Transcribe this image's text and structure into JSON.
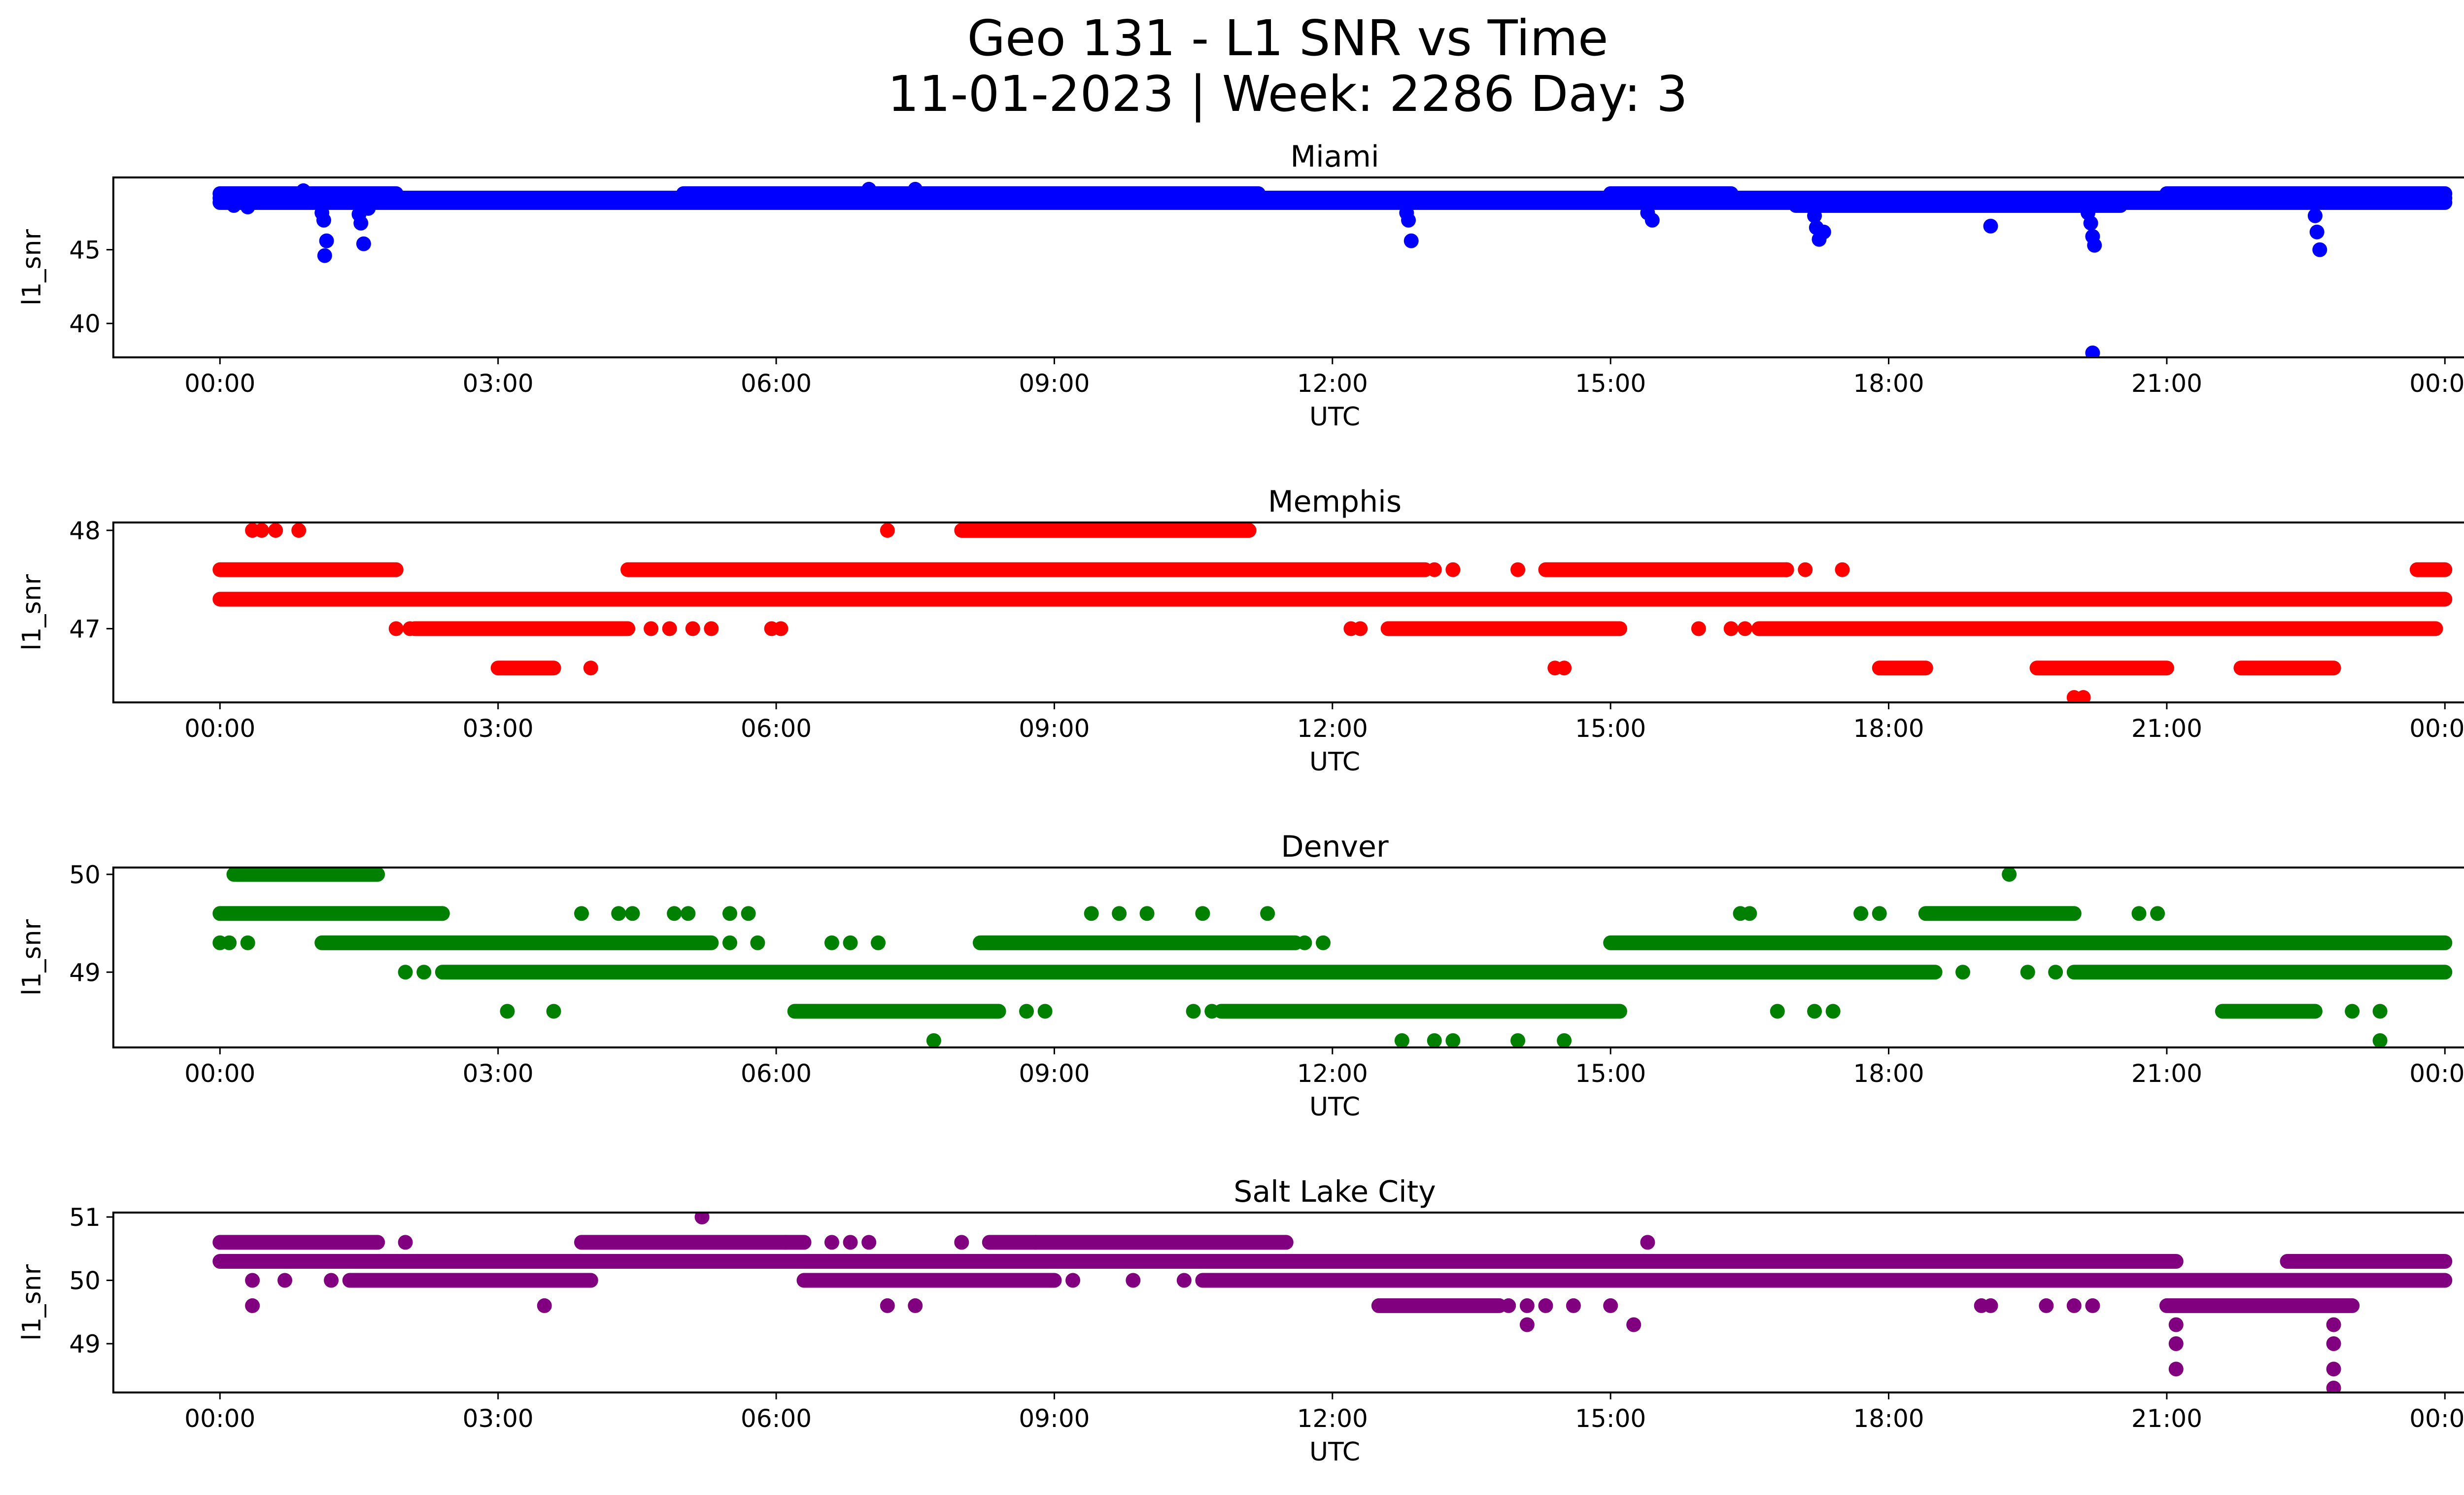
{
  "figure": {
    "title_line1": "Geo 131 - L1 SNR vs Time",
    "title_line2": "11-01-2023 | Week: 2286 Day: 3"
  },
  "chart_data": [
    {
      "type": "scatter",
      "title": "Miami",
      "xlabel": "UTC",
      "ylabel": "l1_snr",
      "color": "#0000ff",
      "xlim_hours": [
        -1.15,
        25.2
      ],
      "ylim": [
        37.7,
        49.9
      ],
      "yticks": [
        40,
        45
      ],
      "xtick_labels": [
        "00:00",
        "03:00",
        "06:00",
        "09:00",
        "12:00",
        "15:00",
        "18:00",
        "21:00",
        "00:00"
      ],
      "bands": [
        {
          "y": 48.5,
          "x": [
            0.0,
            24.0
          ]
        },
        {
          "y": 48.2,
          "x": [
            0.0,
            24.0
          ]
        },
        {
          "y": 48.8,
          "x": [
            0.0,
            1.9
          ]
        },
        {
          "y": 48.8,
          "x": [
            5.0,
            11.2
          ]
        },
        {
          "y": 48.8,
          "x": [
            15.0,
            16.3
          ]
        },
        {
          "y": 48.8,
          "x": [
            21.0,
            24.0
          ]
        },
        {
          "y": 48.0,
          "x": [
            17.0,
            20.5
          ]
        }
      ],
      "points": [
        {
          "x": 0.15,
          "y": 48.0
        },
        {
          "x": 0.3,
          "y": 47.9
        },
        {
          "x": 0.9,
          "y": 49.0
        },
        {
          "x": 1.1,
          "y": 47.5
        },
        {
          "x": 1.12,
          "y": 47.0
        },
        {
          "x": 1.15,
          "y": 45.6
        },
        {
          "x": 1.13,
          "y": 44.6
        },
        {
          "x": 1.5,
          "y": 47.4
        },
        {
          "x": 1.52,
          "y": 46.8
        },
        {
          "x": 1.55,
          "y": 45.4
        },
        {
          "x": 1.6,
          "y": 47.8
        },
        {
          "x": 7.0,
          "y": 49.1
        },
        {
          "x": 7.5,
          "y": 49.1
        },
        {
          "x": 12.8,
          "y": 47.5
        },
        {
          "x": 12.82,
          "y": 47.0
        },
        {
          "x": 12.85,
          "y": 45.6
        },
        {
          "x": 15.4,
          "y": 47.5
        },
        {
          "x": 15.45,
          "y": 47.0
        },
        {
          "x": 17.2,
          "y": 47.3
        },
        {
          "x": 17.22,
          "y": 46.5
        },
        {
          "x": 17.25,
          "y": 45.7
        },
        {
          "x": 17.3,
          "y": 46.2
        },
        {
          "x": 19.1,
          "y": 46.6
        },
        {
          "x": 20.15,
          "y": 47.5
        },
        {
          "x": 20.18,
          "y": 46.8
        },
        {
          "x": 20.2,
          "y": 45.9
        },
        {
          "x": 20.22,
          "y": 45.3
        },
        {
          "x": 20.2,
          "y": 38.0
        },
        {
          "x": 22.6,
          "y": 47.3
        },
        {
          "x": 22.62,
          "y": 46.2
        },
        {
          "x": 22.65,
          "y": 45.0
        }
      ]
    },
    {
      "type": "scatter",
      "title": "Memphis",
      "xlabel": "UTC",
      "ylabel": "l1_snr",
      "color": "#ff0000",
      "xlim_hours": [
        -1.15,
        25.2
      ],
      "ylim": [
        46.25,
        48.08
      ],
      "yticks": [
        47,
        48
      ],
      "xtick_labels": [
        "00:00",
        "03:00",
        "06:00",
        "09:00",
        "12:00",
        "15:00",
        "18:00",
        "21:00",
        "00:00"
      ],
      "bands": [
        {
          "y": 47.3,
          "x": [
            0.0,
            24.0
          ]
        },
        {
          "y": 47.6,
          "x": [
            0.0,
            1.9
          ]
        },
        {
          "y": 47.6,
          "x": [
            4.4,
            13.0
          ]
        },
        {
          "y": 47.6,
          "x": [
            14.3,
            16.9
          ]
        },
        {
          "y": 47.6,
          "x": [
            23.7,
            24.0
          ]
        },
        {
          "y": 47.0,
          "x": [
            2.1,
            4.4
          ]
        },
        {
          "y": 47.0,
          "x": [
            12.6,
            15.1
          ]
        },
        {
          "y": 47.0,
          "x": [
            16.6,
            23.9
          ]
        },
        {
          "y": 48.0,
          "x": [
            8.0,
            11.1
          ]
        },
        {
          "y": 46.6,
          "x": [
            3.0,
            3.6
          ]
        },
        {
          "y": 46.6,
          "x": [
            17.9,
            18.4
          ]
        },
        {
          "y": 46.6,
          "x": [
            19.6,
            21.0
          ]
        },
        {
          "y": 46.6,
          "x": [
            21.8,
            22.8
          ]
        }
      ],
      "points": [
        {
          "x": 0.35,
          "y": 48.0
        },
        {
          "x": 0.45,
          "y": 48.0
        },
        {
          "x": 0.6,
          "y": 48.0
        },
        {
          "x": 0.85,
          "y": 48.0
        },
        {
          "x": 7.2,
          "y": 48.0
        },
        {
          "x": 1.9,
          "y": 47.0
        },
        {
          "x": 2.05,
          "y": 47.0
        },
        {
          "x": 4.65,
          "y": 47.0
        },
        {
          "x": 4.85,
          "y": 47.0
        },
        {
          "x": 5.1,
          "y": 47.0
        },
        {
          "x": 5.3,
          "y": 47.0
        },
        {
          "x": 5.95,
          "y": 47.0
        },
        {
          "x": 6.05,
          "y": 47.0
        },
        {
          "x": 12.2,
          "y": 47.0
        },
        {
          "x": 12.3,
          "y": 47.0
        },
        {
          "x": 15.95,
          "y": 47.0
        },
        {
          "x": 16.3,
          "y": 47.0
        },
        {
          "x": 16.45,
          "y": 47.0
        },
        {
          "x": 13.1,
          "y": 47.6
        },
        {
          "x": 13.3,
          "y": 47.6
        },
        {
          "x": 14.0,
          "y": 47.6
        },
        {
          "x": 16.9,
          "y": 47.6
        },
        {
          "x": 17.1,
          "y": 47.6
        },
        {
          "x": 17.5,
          "y": 47.6
        },
        {
          "x": 4.0,
          "y": 46.6
        },
        {
          "x": 14.4,
          "y": 46.6
        },
        {
          "x": 14.5,
          "y": 46.6
        },
        {
          "x": 20.0,
          "y": 46.3
        },
        {
          "x": 20.1,
          "y": 46.3
        }
      ]
    },
    {
      "type": "scatter",
      "title": "Denver",
      "xlabel": "UTC",
      "ylabel": "l1_snr",
      "color": "#008000",
      "xlim_hours": [
        -1.15,
        25.2
      ],
      "ylim": [
        48.23,
        50.07
      ],
      "yticks": [
        49,
        50
      ],
      "xtick_labels": [
        "00:00",
        "03:00",
        "06:00",
        "09:00",
        "12:00",
        "15:00",
        "18:00",
        "21:00",
        "00:00"
      ],
      "bands": [
        {
          "y": 49.0,
          "x": [
            2.4,
            18.5
          ]
        },
        {
          "y": 49.0,
          "x": [
            20.0,
            24.0
          ]
        },
        {
          "y": 49.3,
          "x": [
            1.1,
            5.3
          ]
        },
        {
          "y": 49.3,
          "x": [
            8.2,
            11.6
          ]
        },
        {
          "y": 49.3,
          "x": [
            15.0,
            24.0
          ]
        },
        {
          "y": 49.6,
          "x": [
            0.0,
            2.4
          ]
        },
        {
          "y": 49.6,
          "x": [
            18.4,
            20.0
          ]
        },
        {
          "y": 50.0,
          "x": [
            0.15,
            1.7
          ]
        },
        {
          "y": 48.6,
          "x": [
            6.2,
            8.4
          ]
        },
        {
          "y": 48.6,
          "x": [
            10.8,
            15.1
          ]
        },
        {
          "y": 48.6,
          "x": [
            21.6,
            22.6
          ]
        }
      ],
      "points": [
        {
          "x": 0.0,
          "y": 49.3
        },
        {
          "x": 0.1,
          "y": 49.3
        },
        {
          "x": 0.3,
          "y": 49.3
        },
        {
          "x": 2.0,
          "y": 49.0
        },
        {
          "x": 2.2,
          "y": 49.0
        },
        {
          "x": 3.9,
          "y": 49.6
        },
        {
          "x": 4.3,
          "y": 49.6
        },
        {
          "x": 4.45,
          "y": 49.6
        },
        {
          "x": 4.9,
          "y": 49.6
        },
        {
          "x": 5.05,
          "y": 49.6
        },
        {
          "x": 5.5,
          "y": 49.6
        },
        {
          "x": 5.7,
          "y": 49.6
        },
        {
          "x": 5.5,
          "y": 49.3
        },
        {
          "x": 5.8,
          "y": 49.3
        },
        {
          "x": 6.6,
          "y": 49.3
        },
        {
          "x": 6.8,
          "y": 49.3
        },
        {
          "x": 7.1,
          "y": 49.3
        },
        {
          "x": 9.4,
          "y": 49.6
        },
        {
          "x": 9.7,
          "y": 49.6
        },
        {
          "x": 10.0,
          "y": 49.6
        },
        {
          "x": 10.6,
          "y": 49.6
        },
        {
          "x": 11.3,
          "y": 49.6
        },
        {
          "x": 11.7,
          "y": 49.3
        },
        {
          "x": 11.9,
          "y": 49.3
        },
        {
          "x": 3.1,
          "y": 48.6
        },
        {
          "x": 3.6,
          "y": 48.6
        },
        {
          "x": 8.7,
          "y": 48.6
        },
        {
          "x": 8.9,
          "y": 48.6
        },
        {
          "x": 10.5,
          "y": 48.6
        },
        {
          "x": 10.7,
          "y": 48.6
        },
        {
          "x": 16.4,
          "y": 49.6
        },
        {
          "x": 16.5,
          "y": 49.6
        },
        {
          "x": 17.7,
          "y": 49.6
        },
        {
          "x": 17.9,
          "y": 49.6
        },
        {
          "x": 19.3,
          "y": 50.0
        },
        {
          "x": 20.7,
          "y": 49.6
        },
        {
          "x": 20.9,
          "y": 49.6
        },
        {
          "x": 18.8,
          "y": 49.0
        },
        {
          "x": 19.5,
          "y": 49.0
        },
        {
          "x": 19.8,
          "y": 49.0
        },
        {
          "x": 16.8,
          "y": 48.6
        },
        {
          "x": 17.2,
          "y": 48.6
        },
        {
          "x": 17.4,
          "y": 48.6
        },
        {
          "x": 23.0,
          "y": 48.6
        },
        {
          "x": 23.3,
          "y": 48.6
        },
        {
          "x": 7.7,
          "y": 48.3
        },
        {
          "x": 12.75,
          "y": 48.3
        },
        {
          "x": 13.1,
          "y": 48.3
        },
        {
          "x": 13.3,
          "y": 48.3
        },
        {
          "x": 14.0,
          "y": 48.3
        },
        {
          "x": 14.5,
          "y": 48.3
        },
        {
          "x": 23.3,
          "y": 48.3
        }
      ]
    },
    {
      "type": "scatter",
      "title": "Salt Lake City",
      "xlabel": "UTC",
      "ylabel": "l1_snr",
      "color": "#800080",
      "xlim_hours": [
        -1.15,
        25.2
      ],
      "ylim": [
        48.23,
        51.07
      ],
      "yticks": [
        49,
        50,
        51
      ],
      "xtick_labels": [
        "00:00",
        "03:00",
        "06:00",
        "09:00",
        "12:00",
        "15:00",
        "18:00",
        "21:00",
        "00:00"
      ],
      "bands": [
        {
          "y": 50.3,
          "x": [
            0.0,
            21.1
          ]
        },
        {
          "y": 50.3,
          "x": [
            22.3,
            24.0
          ]
        },
        {
          "y": 50.6,
          "x": [
            0.0,
            1.7
          ]
        },
        {
          "y": 50.6,
          "x": [
            3.9,
            6.3
          ]
        },
        {
          "y": 50.6,
          "x": [
            8.3,
            11.5
          ]
        },
        {
          "y": 50.0,
          "x": [
            1.4,
            4.0
          ]
        },
        {
          "y": 50.0,
          "x": [
            6.3,
            9.0
          ]
        },
        {
          "y": 50.0,
          "x": [
            10.6,
            24.0
          ]
        },
        {
          "y": 49.6,
          "x": [
            21.0,
            23.0
          ]
        },
        {
          "y": 49.6,
          "x": [
            12.5,
            13.8
          ]
        }
      ],
      "points": [
        {
          "x": 0.35,
          "y": 50.0
        },
        {
          "x": 0.7,
          "y": 50.0
        },
        {
          "x": 1.2,
          "y": 50.0
        },
        {
          "x": 0.35,
          "y": 49.6
        },
        {
          "x": 2.0,
          "y": 50.6
        },
        {
          "x": 3.5,
          "y": 49.6
        },
        {
          "x": 5.2,
          "y": 51.0
        },
        {
          "x": 6.1,
          "y": 50.6
        },
        {
          "x": 6.6,
          "y": 50.6
        },
        {
          "x": 6.8,
          "y": 50.6
        },
        {
          "x": 7.0,
          "y": 50.6
        },
        {
          "x": 7.5,
          "y": 50.0
        },
        {
          "x": 7.2,
          "y": 49.6
        },
        {
          "x": 7.5,
          "y": 49.6
        },
        {
          "x": 8.0,
          "y": 50.6
        },
        {
          "x": 8.8,
          "y": 50.6
        },
        {
          "x": 9.2,
          "y": 50.0
        },
        {
          "x": 9.85,
          "y": 50.0
        },
        {
          "x": 10.4,
          "y": 50.0
        },
        {
          "x": 13.3,
          "y": 50.0
        },
        {
          "x": 13.9,
          "y": 49.6
        },
        {
          "x": 14.1,
          "y": 49.6
        },
        {
          "x": 14.3,
          "y": 49.6
        },
        {
          "x": 14.6,
          "y": 49.6
        },
        {
          "x": 14.1,
          "y": 49.3
        },
        {
          "x": 15.0,
          "y": 49.6
        },
        {
          "x": 15.25,
          "y": 49.3
        },
        {
          "x": 15.4,
          "y": 50.6
        },
        {
          "x": 19.0,
          "y": 49.6
        },
        {
          "x": 19.1,
          "y": 49.6
        },
        {
          "x": 19.7,
          "y": 49.6
        },
        {
          "x": 20.0,
          "y": 49.6
        },
        {
          "x": 20.2,
          "y": 49.6
        },
        {
          "x": 21.1,
          "y": 49.3
        },
        {
          "x": 21.1,
          "y": 49.0
        },
        {
          "x": 21.1,
          "y": 48.6
        },
        {
          "x": 22.8,
          "y": 49.3
        },
        {
          "x": 22.8,
          "y": 49.0
        },
        {
          "x": 22.8,
          "y": 48.6
        },
        {
          "x": 22.8,
          "y": 48.3
        }
      ]
    }
  ]
}
